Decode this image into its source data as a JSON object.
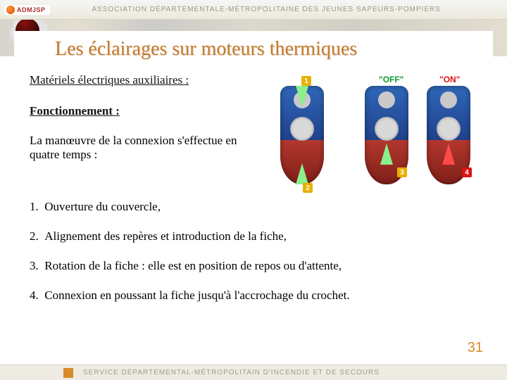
{
  "header": {
    "badge": "ADMJSP",
    "assoc_text": "ASSOCIATION DÉPARTEMENTALE-MÉTROPOLITAINE DES JEUNES SAPEURS-POMPIERS"
  },
  "slide": {
    "title": "Les éclairages sur moteurs thermiques",
    "subheading1": "Matériels électriques auxiliaires :",
    "subheading2": "Fonctionnement :",
    "intro": "La manœuvre de la connexion s'effectue en quatre temps :",
    "steps": [
      {
        "n": "1.",
        "t": "Ouverture du couvercle,"
      },
      {
        "n": "2.",
        "t": "Alignement des repères et introduction de la fiche,"
      },
      {
        "n": "3.",
        "t": "Rotation de la fiche : elle est en position de repos ou d'attente,"
      },
      {
        "n": "4.",
        "t": "Connexion en poussant la fiche jusqu'à l'accrochage du crochet."
      }
    ],
    "page_number": "31"
  },
  "figure": {
    "off_label": "\"OFF\"",
    "on_label": "\"ON\"",
    "markers": {
      "m1": "1",
      "m2": "2",
      "m3": "3",
      "m4": "4"
    },
    "colors": {
      "plug_top": "#2f67b8",
      "plug_bottom": "#b3382e",
      "arrow_green": "#8bf08b",
      "arrow_red": "#ff4a4a",
      "marker_yellow": "#e8b000",
      "marker_red": "#d11"
    }
  },
  "footer": {
    "text": "SERVICE DÉPARTEMENTAL-MÉTROPOLITAIN D'INCENDIE ET DE SECOURS"
  },
  "palette": {
    "title_color": "#c67a2b",
    "page_number_color": "#d98a2a",
    "background": "#ffffff"
  }
}
